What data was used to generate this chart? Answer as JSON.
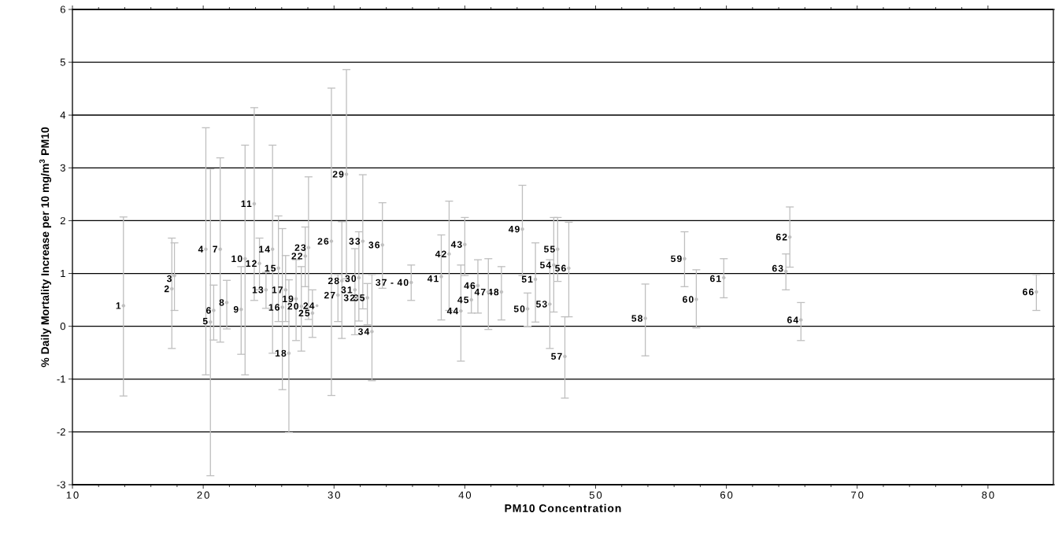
{
  "chart_data": {
    "type": "scatter",
    "xlabel": "PM10 Concentration",
    "ylabel": "% Daily Mortality Increase per 10 mg/m$^{3}$ PM10",
    "xlim": [
      10,
      85
    ],
    "ylim": [
      -3,
      6
    ],
    "xticks": [
      10,
      20,
      30,
      40,
      50,
      60,
      70,
      80
    ],
    "yticks": [
      -3,
      -2,
      -1,
      0,
      1,
      2,
      3,
      4,
      5,
      6
    ],
    "grid": "y",
    "marker": "circle",
    "color": "#bfbfbf",
    "x": [
      13.9,
      17.6,
      17.8,
      20.2,
      20.55,
      20.8,
      21.3,
      21.8,
      22.9,
      23.2,
      23.9,
      24.3,
      24.8,
      25.3,
      25.75,
      26.05,
      26.3,
      26.55,
      27.1,
      27.5,
      27.8,
      28.05,
      28.7,
      28.35,
      29.8,
      30.3,
      30.6,
      30.95,
      31.9,
      31.6,
      31.8,
      32.2,
      32.9,
      32.55,
      33.7,
      35.9,
      38.2,
      38.8,
      40.0,
      39.7,
      40.5,
      41.0,
      41.8,
      42.8,
      44.4,
      44.8,
      45.4,
      46.5,
      46.8,
      47.1,
      47.95,
      47.65,
      53.8,
      56.8,
      57.7,
      59.8,
      64.85,
      64.55,
      65.7,
      83.7
    ],
    "values": [
      0.39,
      0.71,
      0.96,
      1.46,
      0.08,
      0.3,
      1.46,
      0.45,
      0.32,
      1.28,
      2.32,
      1.19,
      0.69,
      1.46,
      1.1,
      0.36,
      0.69,
      -0.51,
      0.52,
      0.38,
      1.33,
      1.49,
      0.39,
      0.25,
      1.61,
      0.59,
      0.86,
      2.88,
      0.92,
      0.69,
      0.54,
      1.61,
      -0.1,
      0.54,
      1.54,
      0.83,
      0.94,
      1.37,
      1.55,
      0.29,
      0.5,
      0.77,
      0.65,
      0.65,
      1.84,
      0.33,
      0.89,
      0.42,
      1.16,
      1.46,
      1.1,
      -0.57,
      0.15,
      1.28,
      0.51,
      0.92,
      1.69,
      1.04,
      0.12,
      0.65
    ],
    "errors": [
      [
        -1.32,
        2.07
      ],
      [
        -0.42,
        1.67
      ],
      [
        0.3,
        1.58
      ],
      [
        -0.92,
        3.76
      ],
      [
        -2.83,
        2.98
      ],
      [
        -0.26,
        0.78
      ],
      [
        -0.3,
        3.19
      ],
      [
        -0.05,
        0.87
      ],
      [
        -0.53,
        1.13
      ],
      [
        -0.92,
        3.43
      ],
      [
        0.49,
        4.14
      ],
      [
        0.69,
        1.67
      ],
      [
        0.34,
        1.02
      ],
      [
        -0.51,
        3.43
      ],
      [
        0.09,
        2.09
      ],
      [
        -1.2,
        1.85
      ],
      [
        0.09,
        1.34
      ],
      [
        -2.01,
        0.88
      ],
      [
        -0.27,
        1.26
      ],
      [
        -0.47,
        1.13
      ],
      [
        0.75,
        1.88
      ],
      [
        0.13,
        2.83
      ],
      null,
      [
        -0.21,
        0.69
      ],
      [
        -1.31,
        4.51
      ],
      [
        0.09,
        0.98
      ],
      [
        -0.23,
        1.98
      ],
      [
        0.9,
        4.86
      ],
      [
        0.1,
        1.79
      ],
      [
        -0.16,
        1.47
      ],
      null,
      [
        0.33,
        2.87
      ],
      [
        -1.03,
        0.98
      ],
      [
        0.03,
        0.81
      ],
      [
        0.72,
        2.34
      ],
      [
        0.49,
        1.16
      ],
      [
        0.12,
        1.73
      ],
      [
        0.3,
        2.37
      ],
      [
        0.96,
        2.06
      ],
      [
        -0.66,
        1.16
      ],
      [
        0.25,
        0.77
      ],
      [
        0.25,
        1.26
      ],
      [
        -0.06,
        1.28
      ],
      [
        0.12,
        1.13
      ],
      [
        0.96,
        2.67
      ],
      [
        0.0,
        0.63
      ],
      [
        0.08,
        1.58
      ],
      [
        -0.42,
        1.26
      ],
      [
        0.27,
        2.06
      ],
      [
        0.85,
        2.06
      ],
      [
        0.18,
        1.97
      ],
      [
        -1.36,
        0.18
      ],
      [
        -0.56,
        0.8
      ],
      [
        0.75,
        1.79
      ],
      [
        -0.03,
        1.07
      ],
      [
        0.54,
        1.28
      ],
      [
        1.12,
        2.26
      ],
      [
        0.69,
        1.37
      ],
      [
        -0.27,
        0.45
      ],
      [
        0.3,
        0.98
      ]
    ],
    "annotations": [
      {
        "text": "1",
        "x": 13.9,
        "y": 0.39
      },
      {
        "text": "2",
        "x": 17.6,
        "y": 0.71
      },
      {
        "text": "3",
        "x": 17.8,
        "y": 0.96
      },
      {
        "text": "4",
        "x": 20.2,
        "y": 1.46
      },
      {
        "text": "5",
        "x": 20.55,
        "y": 0.08
      },
      {
        "text": "6",
        "x": 20.8,
        "y": 0.3
      },
      {
        "text": "7",
        "x": 21.3,
        "y": 1.46
      },
      {
        "text": "8",
        "x": 21.8,
        "y": 0.45
      },
      {
        "text": "9",
        "x": 22.9,
        "y": 0.32
      },
      {
        "text": "10",
        "x": 23.2,
        "y": 1.28
      },
      {
        "text": "11",
        "x": 23.9,
        "y": 2.32
      },
      {
        "text": "12",
        "x": 24.3,
        "y": 1.19
      },
      {
        "text": "13",
        "x": 24.8,
        "y": 0.69
      },
      {
        "text": "14",
        "x": 25.3,
        "y": 1.46
      },
      {
        "text": "15",
        "x": 25.75,
        "y": 1.1
      },
      {
        "text": "16",
        "x": 26.05,
        "y": 0.36
      },
      {
        "text": "17",
        "x": 26.3,
        "y": 0.69
      },
      {
        "text": "18",
        "x": 26.55,
        "y": -0.51
      },
      {
        "text": "19",
        "x": 27.1,
        "y": 0.52
      },
      {
        "text": "20",
        "x": 27.5,
        "y": 0.38
      },
      {
        "text": "22",
        "x": 27.8,
        "y": 1.33
      },
      {
        "text": "23",
        "x": 28.05,
        "y": 1.49
      },
      {
        "text": "24",
        "x": 28.7,
        "y": 0.39
      },
      {
        "text": "25",
        "x": 28.35,
        "y": 0.25
      },
      {
        "text": "26",
        "x": 29.8,
        "y": 1.61
      },
      {
        "text": "27",
        "x": 30.3,
        "y": 0.59
      },
      {
        "text": "28",
        "x": 30.6,
        "y": 0.86
      },
      {
        "text": "29",
        "x": 30.95,
        "y": 2.88
      },
      {
        "text": "30",
        "x": 31.9,
        "y": 0.92
      },
      {
        "text": "31",
        "x": 31.6,
        "y": 0.69
      },
      {
        "text": "32",
        "x": 31.8,
        "y": 0.54
      },
      {
        "text": "33",
        "x": 32.2,
        "y": 1.61
      },
      {
        "text": "34",
        "x": 32.9,
        "y": -0.1
      },
      {
        "text": "35",
        "x": 32.55,
        "y": 0.54
      },
      {
        "text": "36",
        "x": 33.7,
        "y": 1.54
      },
      {
        "text": "37 - 40",
        "x": 35.9,
        "y": 0.83
      },
      {
        "text": "41",
        "x": 38.2,
        "y": 0.94
      },
      {
        "text": "42",
        "x": 38.8,
        "y": 1.37
      },
      {
        "text": "43",
        "x": 40.0,
        "y": 1.55
      },
      {
        "text": "44",
        "x": 39.7,
        "y": 0.29
      },
      {
        "text": "45",
        "x": 40.5,
        "y": 0.5
      },
      {
        "text": "46",
        "x": 41.0,
        "y": 0.77
      },
      {
        "text": "47",
        "x": 41.8,
        "y": 0.65
      },
      {
        "text": "48",
        "x": 42.8,
        "y": 0.65
      },
      {
        "text": "49",
        "x": 44.4,
        "y": 1.84
      },
      {
        "text": "50",
        "x": 44.8,
        "y": 0.33
      },
      {
        "text": "51",
        "x": 45.4,
        "y": 0.89
      },
      {
        "text": "53",
        "x": 46.5,
        "y": 0.42
      },
      {
        "text": "54",
        "x": 46.8,
        "y": 1.16
      },
      {
        "text": "55",
        "x": 47.1,
        "y": 1.46
      },
      {
        "text": "56",
        "x": 47.95,
        "y": 1.1
      },
      {
        "text": "57",
        "x": 47.65,
        "y": -0.57
      },
      {
        "text": "58",
        "x": 53.8,
        "y": 0.15
      },
      {
        "text": "59",
        "x": 56.8,
        "y": 1.28
      },
      {
        "text": "60",
        "x": 57.7,
        "y": 0.51
      },
      {
        "text": "61",
        "x": 59.8,
        "y": 0.92
      },
      {
        "text": "62",
        "x": 64.85,
        "y": 1.69
      },
      {
        "text": "63",
        "x": 64.55,
        "y": 1.04
      },
      {
        "text": "64",
        "x": 65.7,
        "y": 0.12
      },
      {
        "text": "66",
        "x": 83.7,
        "y": 0.65
      }
    ]
  }
}
